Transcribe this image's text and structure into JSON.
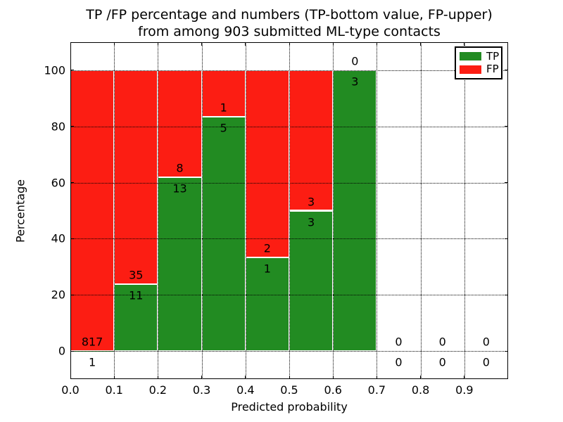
{
  "chart_data": {
    "type": "bar",
    "variant": "stacked-percentage-histogram",
    "title_line1": "TP /FP percentage and numbers (TP-bottom value, FP-upper)",
    "title_line2": "from among 903 submitted ML-type contacts",
    "xlabel": "Predicted probability",
    "ylabel": "Percentage",
    "xlim": [
      0.0,
      1.0
    ],
    "ylim": [
      -10,
      110
    ],
    "grid": "dotted-both-axes",
    "legend_position": "upper-right",
    "legend": [
      {
        "label": "TP",
        "color": "#228b22"
      },
      {
        "label": "FP",
        "color": "#fc1d13"
      }
    ],
    "colors": {
      "tp": "#228b22",
      "fp": "#fc1d13",
      "bar_edge": "#ffffff",
      "axes": "#000000"
    },
    "yticks": [
      {
        "v": 0,
        "label": "0"
      },
      {
        "v": 20,
        "label": "20"
      },
      {
        "v": 40,
        "label": "40"
      },
      {
        "v": 60,
        "label": "60"
      },
      {
        "v": 80,
        "label": "80"
      },
      {
        "v": 100,
        "label": "100"
      }
    ],
    "xticks": [
      {
        "v": 0.0,
        "label": "0.0"
      },
      {
        "v": 0.1,
        "label": "0.1"
      },
      {
        "v": 0.2,
        "label": "0.2"
      },
      {
        "v": 0.3,
        "label": "0.3"
      },
      {
        "v": 0.4,
        "label": "0.4"
      },
      {
        "v": 0.5,
        "label": "0.5"
      },
      {
        "v": 0.6,
        "label": "0.6"
      },
      {
        "v": 0.7,
        "label": "0.7"
      },
      {
        "v": 0.8,
        "label": "0.8"
      },
      {
        "v": 0.9,
        "label": "0.9"
      }
    ],
    "bins": [
      {
        "x0": 0.0,
        "x1": 0.1,
        "tp": 1,
        "fp": 817,
        "tp_pct": 0.12
      },
      {
        "x0": 0.1,
        "x1": 0.2,
        "tp": 11,
        "fp": 35,
        "tp_pct": 23.91
      },
      {
        "x0": 0.2,
        "x1": 0.3,
        "tp": 13,
        "fp": 8,
        "tp_pct": 61.9
      },
      {
        "x0": 0.3,
        "x1": 0.4,
        "tp": 5,
        "fp": 1,
        "tp_pct": 83.33
      },
      {
        "x0": 0.4,
        "x1": 0.5,
        "tp": 1,
        "fp": 2,
        "tp_pct": 33.33
      },
      {
        "x0": 0.5,
        "x1": 0.6,
        "tp": 3,
        "fp": 3,
        "tp_pct": 50.0
      },
      {
        "x0": 0.6,
        "x1": 0.7,
        "tp": 3,
        "fp": 0,
        "tp_pct": 100.0
      },
      {
        "x0": 0.7,
        "x1": 0.8,
        "tp": 0,
        "fp": 0,
        "tp_pct": null
      },
      {
        "x0": 0.8,
        "x1": 0.9,
        "tp": 0,
        "fp": 0,
        "tp_pct": null
      },
      {
        "x0": 0.9,
        "x1": 1.0,
        "tp": 0,
        "fp": 0,
        "tp_pct": null
      }
    ]
  }
}
